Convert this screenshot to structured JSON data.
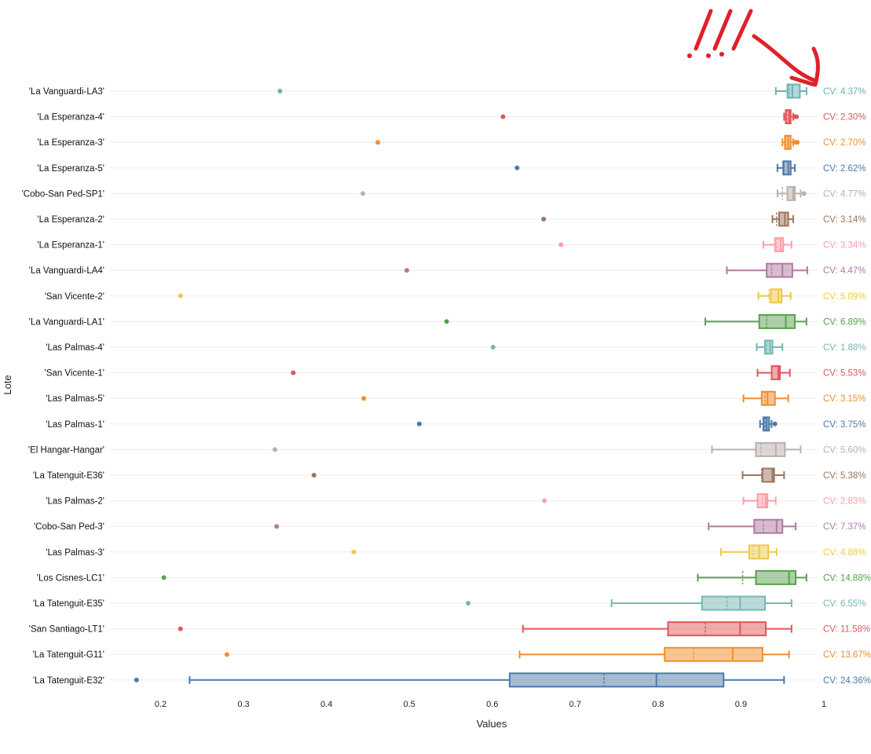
{
  "chart_data": {
    "type": "boxplot",
    "orientation": "horizontal",
    "xlabel": "Values",
    "ylabel": "Lote",
    "xlim": [
      0.12,
      1.0
    ],
    "xticks": [
      "0.2",
      "0.3",
      "0.4",
      "0.5",
      "0.6",
      "0.7",
      "0.8",
      "0.9",
      "1"
    ],
    "annotation": "!!!",
    "series": [
      {
        "name": "'La Vanguardi-LA3'",
        "color": "#6ab4ae",
        "whisker_low": 0.942,
        "q1": 0.956,
        "median": 0.962,
        "mean": 0.958,
        "q3": 0.971,
        "whisker_high": 0.979,
        "outliers": [
          0.344
        ],
        "cv": "CV: 4.37%"
      },
      {
        "name": "'La Esperanza-4'",
        "color": "#e15759",
        "whisker_low": 0.952,
        "q1": 0.954,
        "median": 0.958,
        "mean": 0.955,
        "q3": 0.96,
        "whisker_high": 0.963,
        "outliers": [
          0.613,
          0.965,
          0.967
        ],
        "cv": "CV: 2.30%"
      },
      {
        "name": "'La Esperanza-3'",
        "color": "#f28e2b",
        "whisker_low": 0.95,
        "q1": 0.953,
        "median": 0.957,
        "mean": 0.954,
        "q3": 0.96,
        "whisker_high": 0.963,
        "outliers": [
          0.462,
          0.966,
          0.968
        ],
        "cv": "CV: 2.70%"
      },
      {
        "name": "'La Esperanza-5'",
        "color": "#4e79a7",
        "whisker_low": 0.944,
        "q1": 0.951,
        "median": 0.957,
        "mean": 0.952,
        "q3": 0.96,
        "whisker_high": 0.965,
        "outliers": [
          0.63
        ],
        "cv": "CV: 2.62%"
      },
      {
        "name": "'Cobo-San Ped-SP1'",
        "color": "#bab0ac",
        "whisker_low": 0.944,
        "q1": 0.956,
        "median": 0.963,
        "mean": 0.95,
        "q3": 0.965,
        "whisker_high": 0.972,
        "outliers": [
          0.444,
          0.976
        ],
        "cv": "CV: 4.77%"
      },
      {
        "name": "'La Esperanza-2'",
        "color": "#9c755f",
        "whisker_low": 0.938,
        "q1": 0.946,
        "median": 0.953,
        "mean": 0.943,
        "q3": 0.957,
        "whisker_high": 0.963,
        "outliers": [
          0.662
        ],
        "cv": "CV: 3.14%"
      },
      {
        "name": "'La Esperanza-1'",
        "color": "#ff9da7",
        "whisker_low": 0.927,
        "q1": 0.941,
        "median": 0.948,
        "mean": 0.943,
        "q3": 0.951,
        "whisker_high": 0.961,
        "outliers": [
          0.683
        ],
        "cv": "CV: 3.34%"
      },
      {
        "name": "'La Vanguardi-LA4'",
        "color": "#b07aa1",
        "whisker_low": 0.883,
        "q1": 0.931,
        "median": 0.95,
        "mean": 0.937,
        "q3": 0.962,
        "whisker_high": 0.98,
        "outliers": [
          0.497
        ],
        "cv": "CV: 4.47%"
      },
      {
        "name": "'San Vicente-2'",
        "color": "#edc948",
        "whisker_low": 0.921,
        "q1": 0.936,
        "median": 0.945,
        "mean": 0.934,
        "q3": 0.949,
        "whisker_high": 0.96,
        "outliers": [
          0.224
        ],
        "cv": "CV: 5.09%"
      },
      {
        "name": "'La Vanguardi-LA1'",
        "color": "#59a14f",
        "whisker_low": 0.857,
        "q1": 0.922,
        "median": 0.954,
        "mean": 0.931,
        "q3": 0.965,
        "whisker_high": 0.979,
        "outliers": [
          0.545
        ],
        "cv": "CV: 6.89%"
      },
      {
        "name": "'Las Palmas-4'",
        "color": "#76b7b2",
        "whisker_low": 0.919,
        "q1": 0.929,
        "median": 0.935,
        "mean": 0.931,
        "q3": 0.938,
        "whisker_high": 0.95,
        "outliers": [
          0.601
        ],
        "cv": "CV: 1.88%"
      },
      {
        "name": "'San Vicente-1'",
        "color": "#e15759",
        "whisker_low": 0.92,
        "q1": 0.937,
        "median": 0.945,
        "mean": 0.937,
        "q3": 0.947,
        "whisker_high": 0.959,
        "outliers": [
          0.36
        ],
        "cv": "CV: 5.53%"
      },
      {
        "name": "'Las Palmas-5'",
        "color": "#f28e2b",
        "whisker_low": 0.903,
        "q1": 0.925,
        "median": 0.932,
        "mean": 0.929,
        "q3": 0.941,
        "whisker_high": 0.957,
        "outliers": [
          0.445
        ],
        "cv": "CV: 3.15%"
      },
      {
        "name": "'Las Palmas-1'",
        "color": "#4e79a7",
        "whisker_low": 0.923,
        "q1": 0.927,
        "median": 0.931,
        "mean": 0.929,
        "q3": 0.934,
        "whisker_high": 0.937,
        "outliers": [
          0.512,
          0.941
        ],
        "cv": "CV: 3.75%"
      },
      {
        "name": "'El Hangar-Hangar'",
        "color": "#bab0ac",
        "whisker_low": 0.865,
        "q1": 0.918,
        "median": 0.942,
        "mean": 0.924,
        "q3": 0.953,
        "whisker_high": 0.972,
        "outliers": [
          0.338
        ],
        "cv": "CV: 5.60%"
      },
      {
        "name": "'La Tatenguit-E36'",
        "color": "#9c755f",
        "whisker_low": 0.902,
        "q1": 0.926,
        "median": 0.938,
        "mean": 0.925,
        "q3": 0.94,
        "whisker_high": 0.952,
        "outliers": [
          0.385
        ],
        "cv": "CV: 5.38%"
      },
      {
        "name": "'Las Palmas-2'",
        "color": "#ff9da7",
        "whisker_low": 0.903,
        "q1": 0.92,
        "median": 0.93,
        "mean": 0.926,
        "q3": 0.932,
        "whisker_high": 0.942,
        "outliers": [
          0.663
        ],
        "cv": "CV: 2.83%"
      },
      {
        "name": "'Cobo-San Ped-3'",
        "color": "#b07aa1",
        "whisker_low": 0.861,
        "q1": 0.916,
        "median": 0.943,
        "mean": 0.927,
        "q3": 0.95,
        "whisker_high": 0.966,
        "outliers": [
          0.34
        ],
        "cv": "CV: 7.37%"
      },
      {
        "name": "'Las Palmas-3'",
        "color": "#edc948",
        "whisker_low": 0.876,
        "q1": 0.91,
        "median": 0.922,
        "mean": 0.915,
        "q3": 0.933,
        "whisker_high": 0.943,
        "outliers": [
          0.433
        ],
        "cv": "CV: 4.88%"
      },
      {
        "name": "'Los Cisnes-LC1'",
        "color": "#59a14f",
        "whisker_low": 0.848,
        "q1": 0.918,
        "median": 0.958,
        "mean": 0.902,
        "q3": 0.966,
        "whisker_high": 0.979,
        "outliers": [
          0.204
        ],
        "cv": "CV: 14.88%"
      },
      {
        "name": "'La Tatenguit-E35'",
        "color": "#76b7b2",
        "whisker_low": 0.744,
        "q1": 0.853,
        "median": 0.899,
        "mean": 0.883,
        "q3": 0.929,
        "whisker_high": 0.961,
        "outliers": [
          0.571
        ],
        "cv": "CV: 6.55%"
      },
      {
        "name": "'San Santiago-LT1'",
        "color": "#e15759",
        "whisker_low": 0.637,
        "q1": 0.812,
        "median": 0.899,
        "mean": 0.857,
        "q3": 0.93,
        "whisker_high": 0.961,
        "outliers": [
          0.224
        ],
        "cv": "CV: 11.58%"
      },
      {
        "name": "'La Tatenguit-G11'",
        "color": "#f28e2b",
        "whisker_low": 0.633,
        "q1": 0.808,
        "median": 0.89,
        "mean": 0.843,
        "q3": 0.926,
        "whisker_high": 0.958,
        "outliers": [
          0.28
        ],
        "cv": "CV: 13.67%"
      },
      {
        "name": "'La Tatenguit-E32'",
        "color": "#4e79a7",
        "whisker_low": 0.235,
        "q1": 0.621,
        "median": 0.798,
        "mean": 0.735,
        "q3": 0.879,
        "whisker_high": 0.952,
        "outliers": [
          0.171
        ],
        "cv": "CV: 24.36%"
      }
    ]
  }
}
